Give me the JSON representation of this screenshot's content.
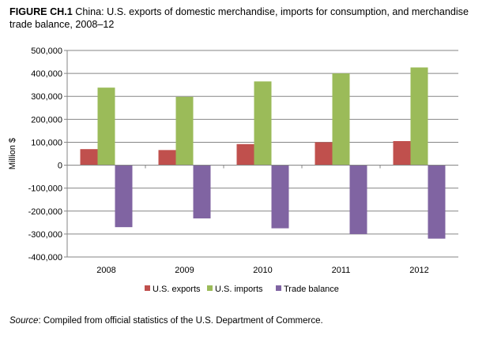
{
  "title": {
    "figure_label": "FIGURE CH.1",
    "text": "China: U.S. exports of domestic merchandise, imports for consumption, and merchandise trade balance, 2008–12"
  },
  "source": {
    "label": "Source",
    "text": ": Compiled from official statistics of the U.S. Department of Commerce."
  },
  "chart_data": {
    "type": "bar",
    "categories": [
      "2008",
      "2009",
      "2010",
      "2011",
      "2012"
    ],
    "series": [
      {
        "name": "U.S. exports",
        "color": "#c0504d",
        "values": [
          70000,
          66000,
          92000,
          100000,
          105000
        ]
      },
      {
        "name": "U.S. imports",
        "color": "#9bbb59",
        "values": [
          338000,
          298000,
          365000,
          400000,
          426000
        ]
      },
      {
        "name": "Trade balance",
        "color": "#8064a2",
        "values": [
          -270000,
          -232000,
          -275000,
          -300000,
          -320000
        ]
      }
    ],
    "ylabel": "Million $",
    "ylim": [
      -400000,
      500000
    ],
    "yticks": [
      "500,000",
      "400,000",
      "300,000",
      "200,000",
      "100,000",
      "0",
      "-100,000",
      "-200,000",
      "-300,000",
      "-400,000"
    ],
    "ytick_values": [
      500000,
      400000,
      300000,
      200000,
      100000,
      0,
      -100000,
      -200000,
      -300000,
      -400000
    ],
    "grid": true,
    "legend_position": "bottom"
  }
}
